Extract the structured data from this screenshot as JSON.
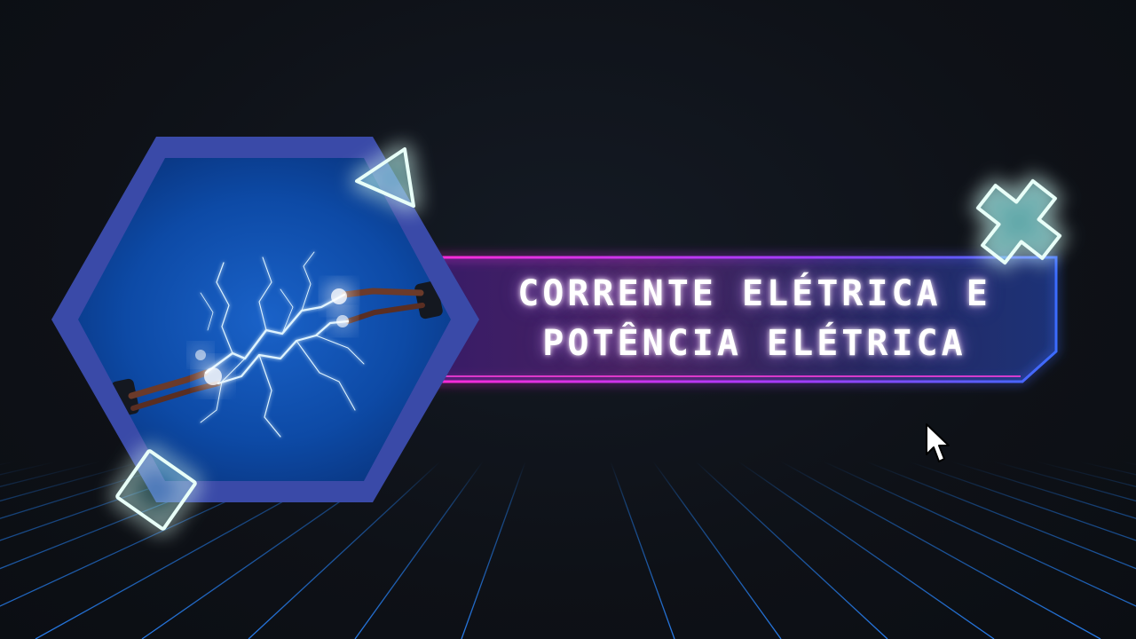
{
  "title": {
    "line1": "CORRENTE ELÉTRICA E",
    "line2": "POTÊNCIA ELÉTRICA"
  },
  "image": {
    "subject": "electrical wires with sparks"
  },
  "icons": [
    "triangle-icon",
    "cross-icon",
    "diamond-icon",
    "cursor-icon"
  ],
  "colors": {
    "background": "#0e1117",
    "grid": "#1f6fd0",
    "hexagon_border": "#3a4aa8",
    "banner_pink": "#ff2bd6",
    "banner_blue": "#3b6cff",
    "neon_shape": "#bdfff0"
  }
}
